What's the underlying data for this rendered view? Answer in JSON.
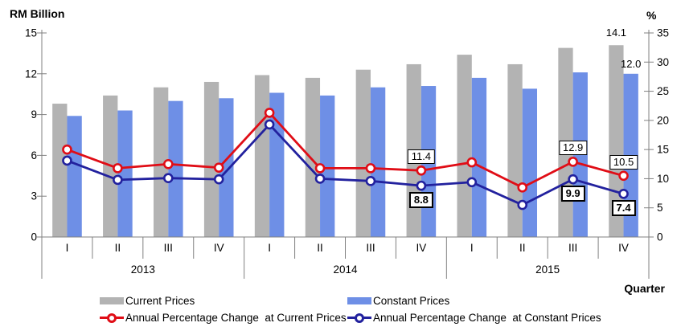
{
  "titles": {
    "left_axis": "RM Billion",
    "right_axis": "%",
    "x_axis": "Quarter"
  },
  "legend": [
    {
      "label": "Current Prices",
      "type": "bar",
      "color": "#b3b3b3"
    },
    {
      "label": "Constant Prices",
      "type": "bar",
      "color": "#6e8fe6"
    },
    {
      "label": "Annual Percentage Change  at Current Prices",
      "type": "line",
      "color": "#e00d16"
    },
    {
      "label": "Annual Percentage Change  at Constant Prices",
      "type": "line",
      "color": "#22219e"
    }
  ],
  "chart_data": {
    "type": "combo-bar-line",
    "categories": [
      "I",
      "II",
      "III",
      "IV",
      "I",
      "II",
      "III",
      "IV",
      "I",
      "II",
      "III",
      "IV"
    ],
    "years": [
      "2013",
      "2014",
      "2015"
    ],
    "left_axis": {
      "title": "RM Billion",
      "ticks": [
        0,
        3,
        6,
        9,
        12,
        15
      ],
      "range": [
        0,
        15
      ]
    },
    "right_axis": {
      "title": "%",
      "ticks": [
        0,
        5,
        10,
        15,
        20,
        25,
        30,
        35
      ],
      "range": [
        0,
        35
      ]
    },
    "x_axis_title": "Quarter",
    "series": [
      {
        "name": "Current Prices",
        "type": "bar",
        "axis": "left",
        "color": "#b3b3b3",
        "values": [
          9.8,
          10.4,
          11.0,
          11.4,
          11.9,
          11.7,
          12.3,
          12.7,
          13.4,
          12.7,
          13.9,
          14.1
        ],
        "point_labels": {
          "11": "14.1"
        }
      },
      {
        "name": "Constant Prices",
        "type": "bar",
        "axis": "left",
        "color": "#6e8fe6",
        "values": [
          8.9,
          9.3,
          10.0,
          10.2,
          10.6,
          10.4,
          11.0,
          11.1,
          11.7,
          10.9,
          12.1,
          12.0
        ],
        "point_labels": {
          "11": "12.0"
        }
      },
      {
        "name": "Annual Percentage Change  at Current Prices",
        "type": "line",
        "axis": "right",
        "color": "#e00d16",
        "label_side": "above",
        "bold_labels": false,
        "values": [
          15.0,
          11.8,
          12.5,
          11.9,
          21.3,
          11.8,
          11.8,
          11.4,
          12.8,
          8.5,
          12.9,
          10.5
        ],
        "boxed_labels": {
          "7": "11.4",
          "10": "12.9",
          "11": "10.5"
        }
      },
      {
        "name": "Annual Percentage Change  at Constant Prices",
        "type": "line",
        "axis": "right",
        "color": "#22219e",
        "label_side": "below",
        "bold_labels": true,
        "values": [
          13.1,
          9.8,
          10.1,
          9.9,
          19.3,
          10.0,
          9.6,
          8.8,
          9.4,
          5.5,
          9.9,
          7.4
        ],
        "boxed_labels": {
          "7": "8.8",
          "10": "9.9",
          "11": "7.4"
        }
      }
    ],
    "layout": {
      "legend_position": "bottom",
      "grid": false
    }
  }
}
